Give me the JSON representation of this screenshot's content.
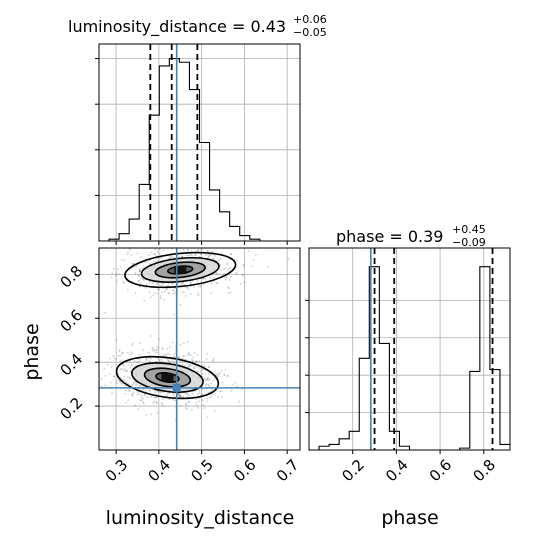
{
  "chart_data": [
    {
      "type": "histogram",
      "panel": "luminosity_distance-marginal",
      "title": "luminosity_distance = 0.43",
      "title_sup": "+0.06",
      "title_sub": "−0.05",
      "xlim": [
        0.26,
        0.73
      ],
      "ylim": [
        0,
        1
      ],
      "xticks": [
        0.3,
        0.4,
        0.5,
        0.6,
        0.7
      ],
      "bin_edges": [
        0.26,
        0.2835,
        0.307,
        0.3305,
        0.354,
        0.3775,
        0.401,
        0.4245,
        0.448,
        0.4715,
        0.495,
        0.5185,
        0.542,
        0.5655,
        0.589,
        0.6125,
        0.636,
        0.6595,
        0.683,
        0.7065,
        0.73
      ],
      "counts": [
        0.0,
        0.01,
        0.04,
        0.12,
        0.31,
        0.69,
        0.96,
        1.0,
        0.98,
        0.83,
        0.54,
        0.28,
        0.16,
        0.08,
        0.03,
        0.01,
        0.0,
        0.0,
        0.0,
        0.0
      ],
      "quantiles": [
        0.38,
        0.43,
        0.49
      ],
      "truth": 0.4417
    },
    {
      "type": "histogram",
      "panel": "phase-marginal",
      "title": "phase = 0.39",
      "title_sup": "+0.45",
      "title_sub": "−0.09",
      "xlim": [
        0.0,
        0.92
      ],
      "ylim": [
        0,
        1
      ],
      "xticks": [
        0.2,
        0.4,
        0.6,
        0.8
      ],
      "xlabel": "phase",
      "bin_edges": [
        0.0,
        0.046,
        0.092,
        0.138,
        0.184,
        0.23,
        0.276,
        0.322,
        0.368,
        0.414,
        0.46,
        0.506,
        0.552,
        0.598,
        0.644,
        0.69,
        0.736,
        0.782,
        0.828,
        0.874,
        0.92
      ],
      "counts": [
        0.0,
        0.02,
        0.03,
        0.06,
        0.1,
        0.49,
        0.98,
        0.57,
        0.1,
        0.02,
        0.0,
        0.0,
        0.0,
        0.0,
        0.0,
        0.01,
        0.42,
        0.98,
        0.43,
        0.03
      ],
      "quantiles": [
        0.3,
        0.39,
        0.84
      ],
      "truth": 0.2829
    },
    {
      "type": "scatter",
      "panel": "2d-posterior",
      "xlabel": "luminosity_distance",
      "ylabel": "phase",
      "xlim": [
        0.26,
        0.73
      ],
      "ylim": [
        0.0,
        0.92
      ],
      "xticks": [
        0.3,
        0.4,
        0.5,
        0.6,
        0.7
      ],
      "yticks": [
        0.2,
        0.4,
        0.6,
        0.8
      ],
      "truth": [
        0.4417,
        0.2829
      ],
      "clusters": [
        {
          "center": [
            0.45,
            0.82
          ],
          "spread": [
            0.065,
            0.05
          ],
          "tilt": 0.15,
          "n": 700
        },
        {
          "center": [
            0.42,
            0.33
          ],
          "spread": [
            0.06,
            0.06
          ],
          "tilt": -0.2,
          "n": 900
        }
      ]
    }
  ],
  "colors": {
    "truth": "#4682b4",
    "hist": "#000000",
    "grid": "#b0b0b0",
    "points": "#555555"
  }
}
